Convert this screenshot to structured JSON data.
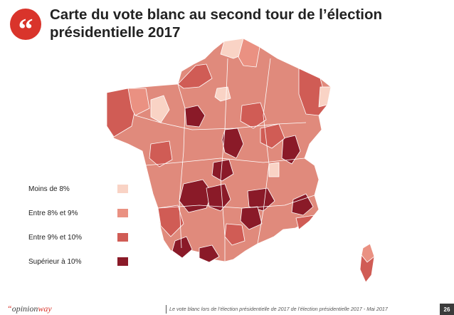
{
  "header": {
    "quote_glyph": "“",
    "title": "Carte du vote blanc au second tour de l’élection présidentielle 2017"
  },
  "colors": {
    "brand_red": "#d9342b",
    "lt8": "#f9d3c5",
    "c8_9": "#ea9182",
    "c9_10": "#d05c55",
    "gt10": "#8a1a28"
  },
  "legend": {
    "items": [
      {
        "label": "Moins de 8%",
        "color": "#f9d3c5"
      },
      {
        "label": "Entre 8% et 9%",
        "color": "#ea9182"
      },
      {
        "label": "Entre 9% et 10%",
        "color": "#d05c55"
      },
      {
        "label": "Supérieur à 10%",
        "color": "#8a1a28"
      }
    ]
  },
  "footer": {
    "logo_accent": "“",
    "logo_text_a": "opinion",
    "logo_text_b": "way",
    "source": "Le vote blanc lors de l’élection présidentielle de 2017 de l’élection présidentielle 2017 - Mai 2017",
    "page": "26"
  }
}
